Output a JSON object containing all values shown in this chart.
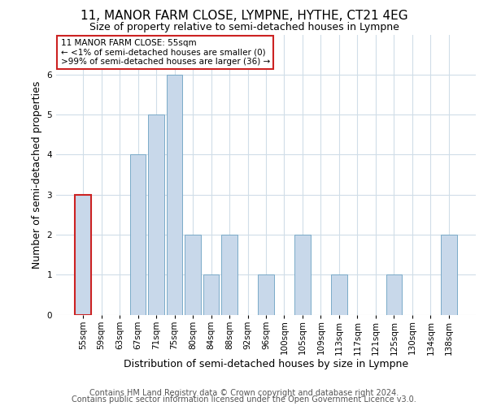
{
  "title": "11, MANOR FARM CLOSE, LYMPNE, HYTHE, CT21 4EG",
  "subtitle": "Size of property relative to semi-detached houses in Lympne",
  "xlabel": "Distribution of semi-detached houses by size in Lympne",
  "ylabel": "Number of semi-detached properties",
  "categories": [
    "55sqm",
    "59sqm",
    "63sqm",
    "67sqm",
    "71sqm",
    "75sqm",
    "80sqm",
    "84sqm",
    "88sqm",
    "92sqm",
    "96sqm",
    "100sqm",
    "105sqm",
    "109sqm",
    "113sqm",
    "117sqm",
    "121sqm",
    "125sqm",
    "130sqm",
    "134sqm",
    "138sqm"
  ],
  "values": [
    3,
    0,
    0,
    4,
    5,
    6,
    2,
    1,
    2,
    0,
    1,
    0,
    2,
    0,
    1,
    0,
    0,
    1,
    0,
    0,
    2
  ],
  "bar_color": "#c8d8ea",
  "bar_edge_color": "#7aaac8",
  "highlight_index": 0,
  "highlight_edge_color": "#cc2222",
  "annotation_box_text": "11 MANOR FARM CLOSE: 55sqm\n← <1% of semi-detached houses are smaller (0)\n>99% of semi-detached houses are larger (36) →",
  "annotation_box_edge_color": "#cc2222",
  "annotation_box_facecolor": "#ffffff",
  "ylim": [
    0,
    7
  ],
  "yticks": [
    0,
    1,
    2,
    3,
    4,
    5,
    6,
    7
  ],
  "footer_line1": "Contains HM Land Registry data © Crown copyright and database right 2024.",
  "footer_line2": "Contains public sector information licensed under the Open Government Licence v3.0.",
  "background_color": "#ffffff",
  "grid_color": "#d0dde8",
  "title_fontsize": 11,
  "subtitle_fontsize": 9,
  "axis_label_fontsize": 9,
  "tick_fontsize": 7.5,
  "footer_fontsize": 7,
  "annotation_fontsize": 7.5
}
